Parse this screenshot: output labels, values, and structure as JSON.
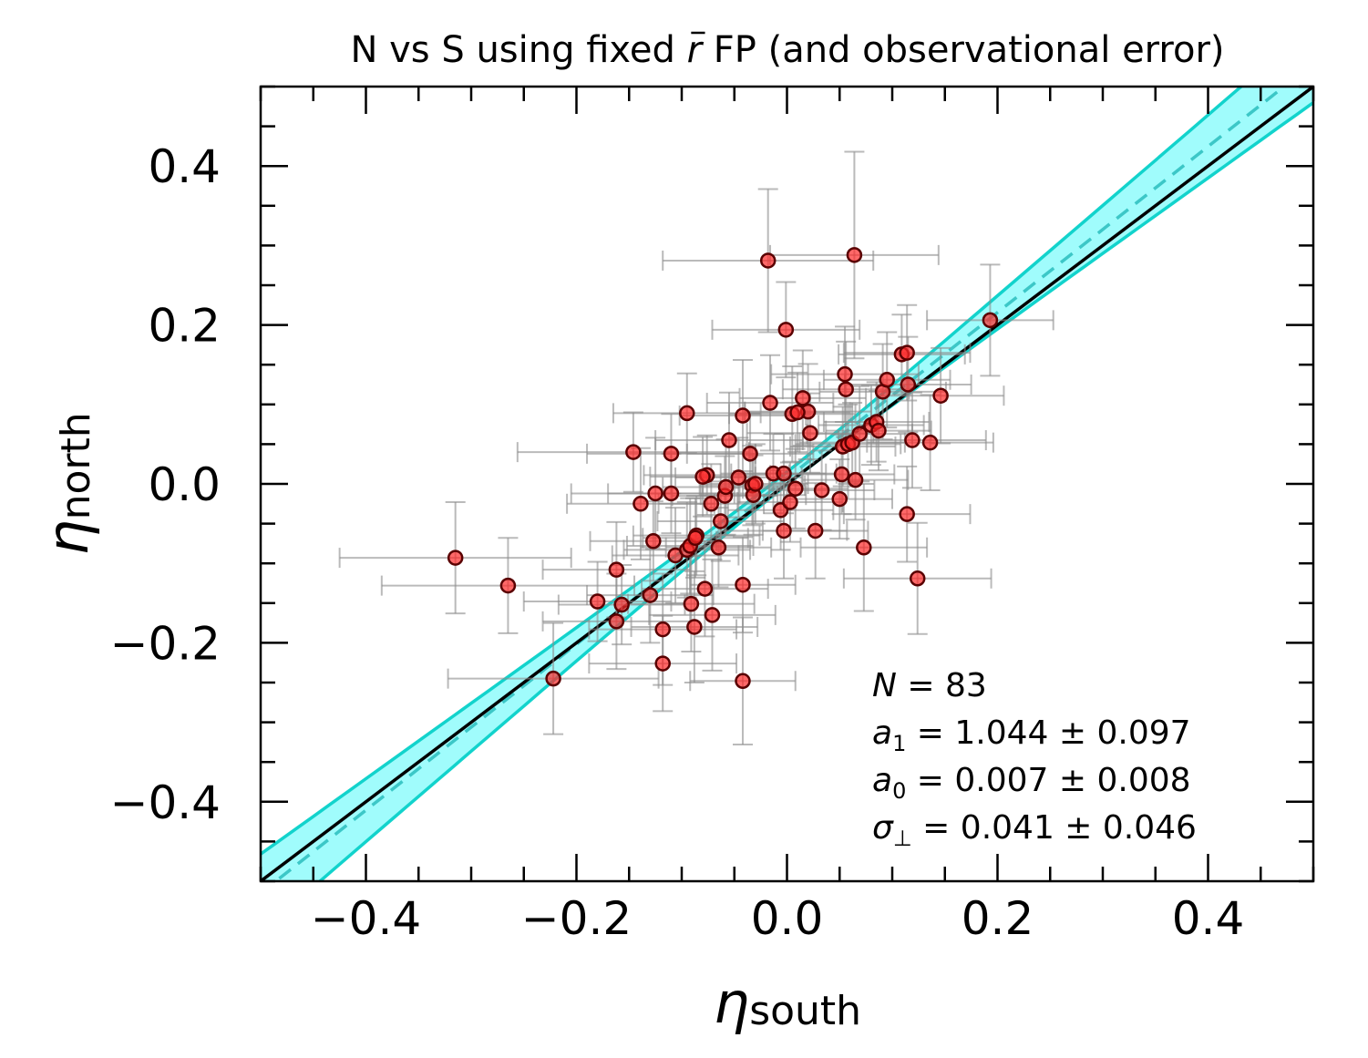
{
  "chart_data": {
    "type": "scatter",
    "title": "N vs S using fixed r̄  FP (and observational error)",
    "title_parts": {
      "before": "N vs S using fixed ",
      "symbol": "r",
      "after": "  FP (and observational error)"
    },
    "xlabel": {
      "symbol": "η",
      "subscript": "south"
    },
    "ylabel": {
      "symbol": "η",
      "subscript": "north"
    },
    "xlim": [
      -0.5,
      0.5
    ],
    "ylim": [
      -0.5,
      0.5
    ],
    "x_ticks": [
      -0.4,
      -0.2,
      0.0,
      0.2,
      0.4
    ],
    "y_ticks": [
      -0.4,
      -0.2,
      0.0,
      0.2,
      0.4
    ],
    "x_tick_labels": [
      "−0.4",
      "−0.2",
      "0.0",
      "0.2",
      "0.4"
    ],
    "y_tick_labels": [
      "−0.4",
      "−0.2",
      "0.0",
      "0.2",
      "0.4"
    ],
    "grid": false,
    "colors": {
      "points": "#ff2a2a",
      "point_edge": "#5a0000",
      "errorbars": "#8c8c8c",
      "band_fill": "#8ffcfc",
      "band_edge": "#12d3cc",
      "fit_line": "#3cc7c7",
      "one_to_one": "#000000"
    },
    "one_to_one_line": {
      "slope": 1.0,
      "intercept": 0.0
    },
    "fit_line": {
      "slope": 1.044,
      "intercept": 0.007
    },
    "band": {
      "slope_err": 0.097,
      "intercept_err": 0.008
    },
    "annotation": [
      {
        "sym": "N",
        "sub": "",
        "text": " = 83"
      },
      {
        "sym": "a",
        "sub": "1",
        "text": " = 1.044 ± 0.097"
      },
      {
        "sym": "a",
        "sub": "0",
        "text": " = 0.007 ± 0.008"
      },
      {
        "sym": "σ",
        "sub": "⊥",
        "text": " = 0.041 ± 0.046"
      }
    ],
    "points": [
      {
        "x": -0.315,
        "y": -0.093,
        "xerr": 0.11,
        "yerr": 0.07
      },
      {
        "x": -0.265,
        "y": -0.128,
        "xerr": 0.12,
        "yerr": 0.06
      },
      {
        "x": -0.222,
        "y": -0.245,
        "xerr": 0.1,
        "yerr": 0.07
      },
      {
        "x": -0.18,
        "y": -0.148,
        "xerr": 0.07,
        "yerr": 0.05
      },
      {
        "x": -0.162,
        "y": -0.108,
        "xerr": 0.07,
        "yerr": 0.06
      },
      {
        "x": -0.162,
        "y": -0.173,
        "xerr": 0.07,
        "yerr": 0.06
      },
      {
        "x": -0.157,
        "y": -0.152,
        "xerr": 0.06,
        "yerr": 0.05
      },
      {
        "x": -0.146,
        "y": 0.04,
        "xerr": 0.11,
        "yerr": 0.05
      },
      {
        "x": -0.139,
        "y": -0.025,
        "xerr": 0.07,
        "yerr": 0.07
      },
      {
        "x": -0.13,
        "y": -0.14,
        "xerr": 0.06,
        "yerr": 0.06
      },
      {
        "x": -0.127,
        "y": -0.072,
        "xerr": 0.06,
        "yerr": 0.05
      },
      {
        "x": -0.125,
        "y": -0.012,
        "xerr": 0.08,
        "yerr": 0.07
      },
      {
        "x": -0.118,
        "y": -0.183,
        "xerr": 0.07,
        "yerr": 0.07
      },
      {
        "x": -0.118,
        "y": -0.226,
        "xerr": 0.07,
        "yerr": 0.06
      },
      {
        "x": -0.11,
        "y": 0.038,
        "xerr": 0.08,
        "yerr": 0.05
      },
      {
        "x": -0.11,
        "y": -0.012,
        "xerr": 0.06,
        "yerr": 0.05
      },
      {
        "x": -0.106,
        "y": -0.09,
        "xerr": 0.06,
        "yerr": 0.06
      },
      {
        "x": -0.095,
        "y": 0.089,
        "xerr": 0.07,
        "yerr": 0.05
      },
      {
        "x": -0.095,
        "y": -0.083,
        "xerr": 0.06,
        "yerr": 0.06
      },
      {
        "x": -0.092,
        "y": -0.078,
        "xerr": 0.06,
        "yerr": 0.06
      },
      {
        "x": -0.091,
        "y": -0.151,
        "xerr": 0.06,
        "yerr": 0.06
      },
      {
        "x": -0.088,
        "y": -0.18,
        "xerr": 0.06,
        "yerr": 0.07
      },
      {
        "x": -0.086,
        "y": -0.065,
        "xerr": 0.06,
        "yerr": 0.05
      },
      {
        "x": -0.078,
        "y": -0.132,
        "xerr": 0.06,
        "yerr": 0.06
      },
      {
        "x": -0.076,
        "y": 0.011,
        "xerr": 0.06,
        "yerr": 0.05
      },
      {
        "x": -0.072,
        "y": -0.025,
        "xerr": 0.05,
        "yerr": 0.05
      },
      {
        "x": -0.071,
        "y": -0.165,
        "xerr": 0.06,
        "yerr": 0.07
      },
      {
        "x": -0.065,
        "y": -0.08,
        "xerr": 0.05,
        "yerr": 0.05
      },
      {
        "x": -0.063,
        "y": -0.047,
        "xerr": 0.06,
        "yerr": 0.05
      },
      {
        "x": -0.059,
        "y": -0.015,
        "xerr": 0.05,
        "yerr": 0.05
      },
      {
        "x": -0.058,
        "y": -0.004,
        "xerr": 0.06,
        "yerr": 0.06
      },
      {
        "x": -0.055,
        "y": 0.055,
        "xerr": 0.07,
        "yerr": 0.06
      },
      {
        "x": -0.046,
        "y": 0.008,
        "xerr": 0.06,
        "yerr": 0.05
      },
      {
        "x": -0.042,
        "y": 0.086,
        "xerr": 0.06,
        "yerr": 0.07
      },
      {
        "x": -0.042,
        "y": -0.127,
        "xerr": 0.05,
        "yerr": 0.06
      },
      {
        "x": -0.042,
        "y": -0.248,
        "xerr": 0.05,
        "yerr": 0.08
      },
      {
        "x": -0.035,
        "y": 0.038,
        "xerr": 0.06,
        "yerr": 0.05
      },
      {
        "x": -0.033,
        "y": -0.002,
        "xerr": 0.05,
        "yerr": 0.05
      },
      {
        "x": -0.032,
        "y": -0.014,
        "xerr": 0.05,
        "yerr": 0.05
      },
      {
        "x": -0.03,
        "y": 0.0,
        "xerr": 0.05,
        "yerr": 0.05
      },
      {
        "x": -0.018,
        "y": 0.281,
        "xerr": 0.1,
        "yerr": 0.09
      },
      {
        "x": -0.016,
        "y": 0.102,
        "xerr": 0.06,
        "yerr": 0.06
      },
      {
        "x": -0.013,
        "y": 0.013,
        "xerr": 0.05,
        "yerr": 0.05
      },
      {
        "x": -0.006,
        "y": -0.033,
        "xerr": 0.05,
        "yerr": 0.05
      },
      {
        "x": -0.003,
        "y": 0.013,
        "xerr": 0.05,
        "yerr": 0.05
      },
      {
        "x": -0.003,
        "y": -0.059,
        "xerr": 0.06,
        "yerr": 0.06
      },
      {
        "x": -0.001,
        "y": 0.194,
        "xerr": 0.07,
        "yerr": 0.06
      },
      {
        "x": 0.003,
        "y": -0.023,
        "xerr": 0.05,
        "yerr": 0.05
      },
      {
        "x": 0.005,
        "y": 0.088,
        "xerr": 0.06,
        "yerr": 0.06
      },
      {
        "x": 0.008,
        "y": -0.006,
        "xerr": 0.05,
        "yerr": 0.05
      },
      {
        "x": 0.015,
        "y": 0.108,
        "xerr": 0.06,
        "yerr": 0.06
      },
      {
        "x": 0.02,
        "y": 0.091,
        "xerr": 0.06,
        "yerr": 0.06
      },
      {
        "x": 0.022,
        "y": 0.064,
        "xerr": 0.06,
        "yerr": 0.05
      },
      {
        "x": 0.027,
        "y": -0.059,
        "xerr": 0.05,
        "yerr": 0.06
      },
      {
        "x": 0.033,
        "y": -0.008,
        "xerr": 0.05,
        "yerr": 0.05
      },
      {
        "x": 0.05,
        "y": -0.019,
        "xerr": 0.05,
        "yerr": 0.05
      },
      {
        "x": 0.052,
        "y": 0.012,
        "xerr": 0.05,
        "yerr": 0.05
      },
      {
        "x": 0.053,
        "y": 0.047,
        "xerr": 0.05,
        "yerr": 0.05
      },
      {
        "x": 0.055,
        "y": 0.138,
        "xerr": 0.07,
        "yerr": 0.06
      },
      {
        "x": 0.056,
        "y": 0.119,
        "xerr": 0.06,
        "yerr": 0.06
      },
      {
        "x": 0.058,
        "y": 0.05,
        "xerr": 0.05,
        "yerr": 0.05
      },
      {
        "x": 0.062,
        "y": 0.052,
        "xerr": 0.05,
        "yerr": 0.05
      },
      {
        "x": 0.064,
        "y": 0.288,
        "xerr": 0.08,
        "yerr": 0.13
      },
      {
        "x": 0.065,
        "y": 0.005,
        "xerr": 0.05,
        "yerr": 0.05
      },
      {
        "x": 0.069,
        "y": 0.063,
        "xerr": 0.05,
        "yerr": 0.06
      },
      {
        "x": 0.073,
        "y": -0.08,
        "xerr": 0.06,
        "yerr": 0.08
      },
      {
        "x": 0.08,
        "y": 0.074,
        "xerr": 0.05,
        "yerr": 0.05
      },
      {
        "x": 0.085,
        "y": 0.078,
        "xerr": 0.05,
        "yerr": 0.05
      },
      {
        "x": 0.087,
        "y": 0.067,
        "xerr": 0.05,
        "yerr": 0.05
      },
      {
        "x": 0.091,
        "y": 0.116,
        "xerr": 0.06,
        "yerr": 0.06
      },
      {
        "x": 0.095,
        "y": 0.131,
        "xerr": 0.06,
        "yerr": 0.06
      },
      {
        "x": 0.109,
        "y": 0.163,
        "xerr": 0.06,
        "yerr": 0.05
      },
      {
        "x": 0.114,
        "y": 0.165,
        "xerr": 0.06,
        "yerr": 0.06
      },
      {
        "x": 0.114,
        "y": -0.038,
        "xerr": 0.06,
        "yerr": 0.06
      },
      {
        "x": 0.115,
        "y": 0.125,
        "xerr": 0.06,
        "yerr": 0.06
      },
      {
        "x": 0.119,
        "y": 0.055,
        "xerr": 0.07,
        "yerr": 0.06
      },
      {
        "x": 0.124,
        "y": -0.119,
        "xerr": 0.07,
        "yerr": 0.07
      },
      {
        "x": 0.136,
        "y": 0.052,
        "xerr": 0.06,
        "yerr": 0.06
      },
      {
        "x": 0.146,
        "y": 0.111,
        "xerr": 0.06,
        "yerr": 0.06
      },
      {
        "x": 0.193,
        "y": 0.206,
        "xerr": 0.06,
        "yerr": 0.07
      },
      {
        "x": -0.087,
        "y": -0.068,
        "xerr": 0.05,
        "yerr": 0.05
      },
      {
        "x": -0.08,
        "y": 0.009,
        "xerr": 0.05,
        "yerr": 0.05
      },
      {
        "x": 0.01,
        "y": 0.09,
        "xerr": 0.05,
        "yerr": 0.05
      }
    ]
  }
}
